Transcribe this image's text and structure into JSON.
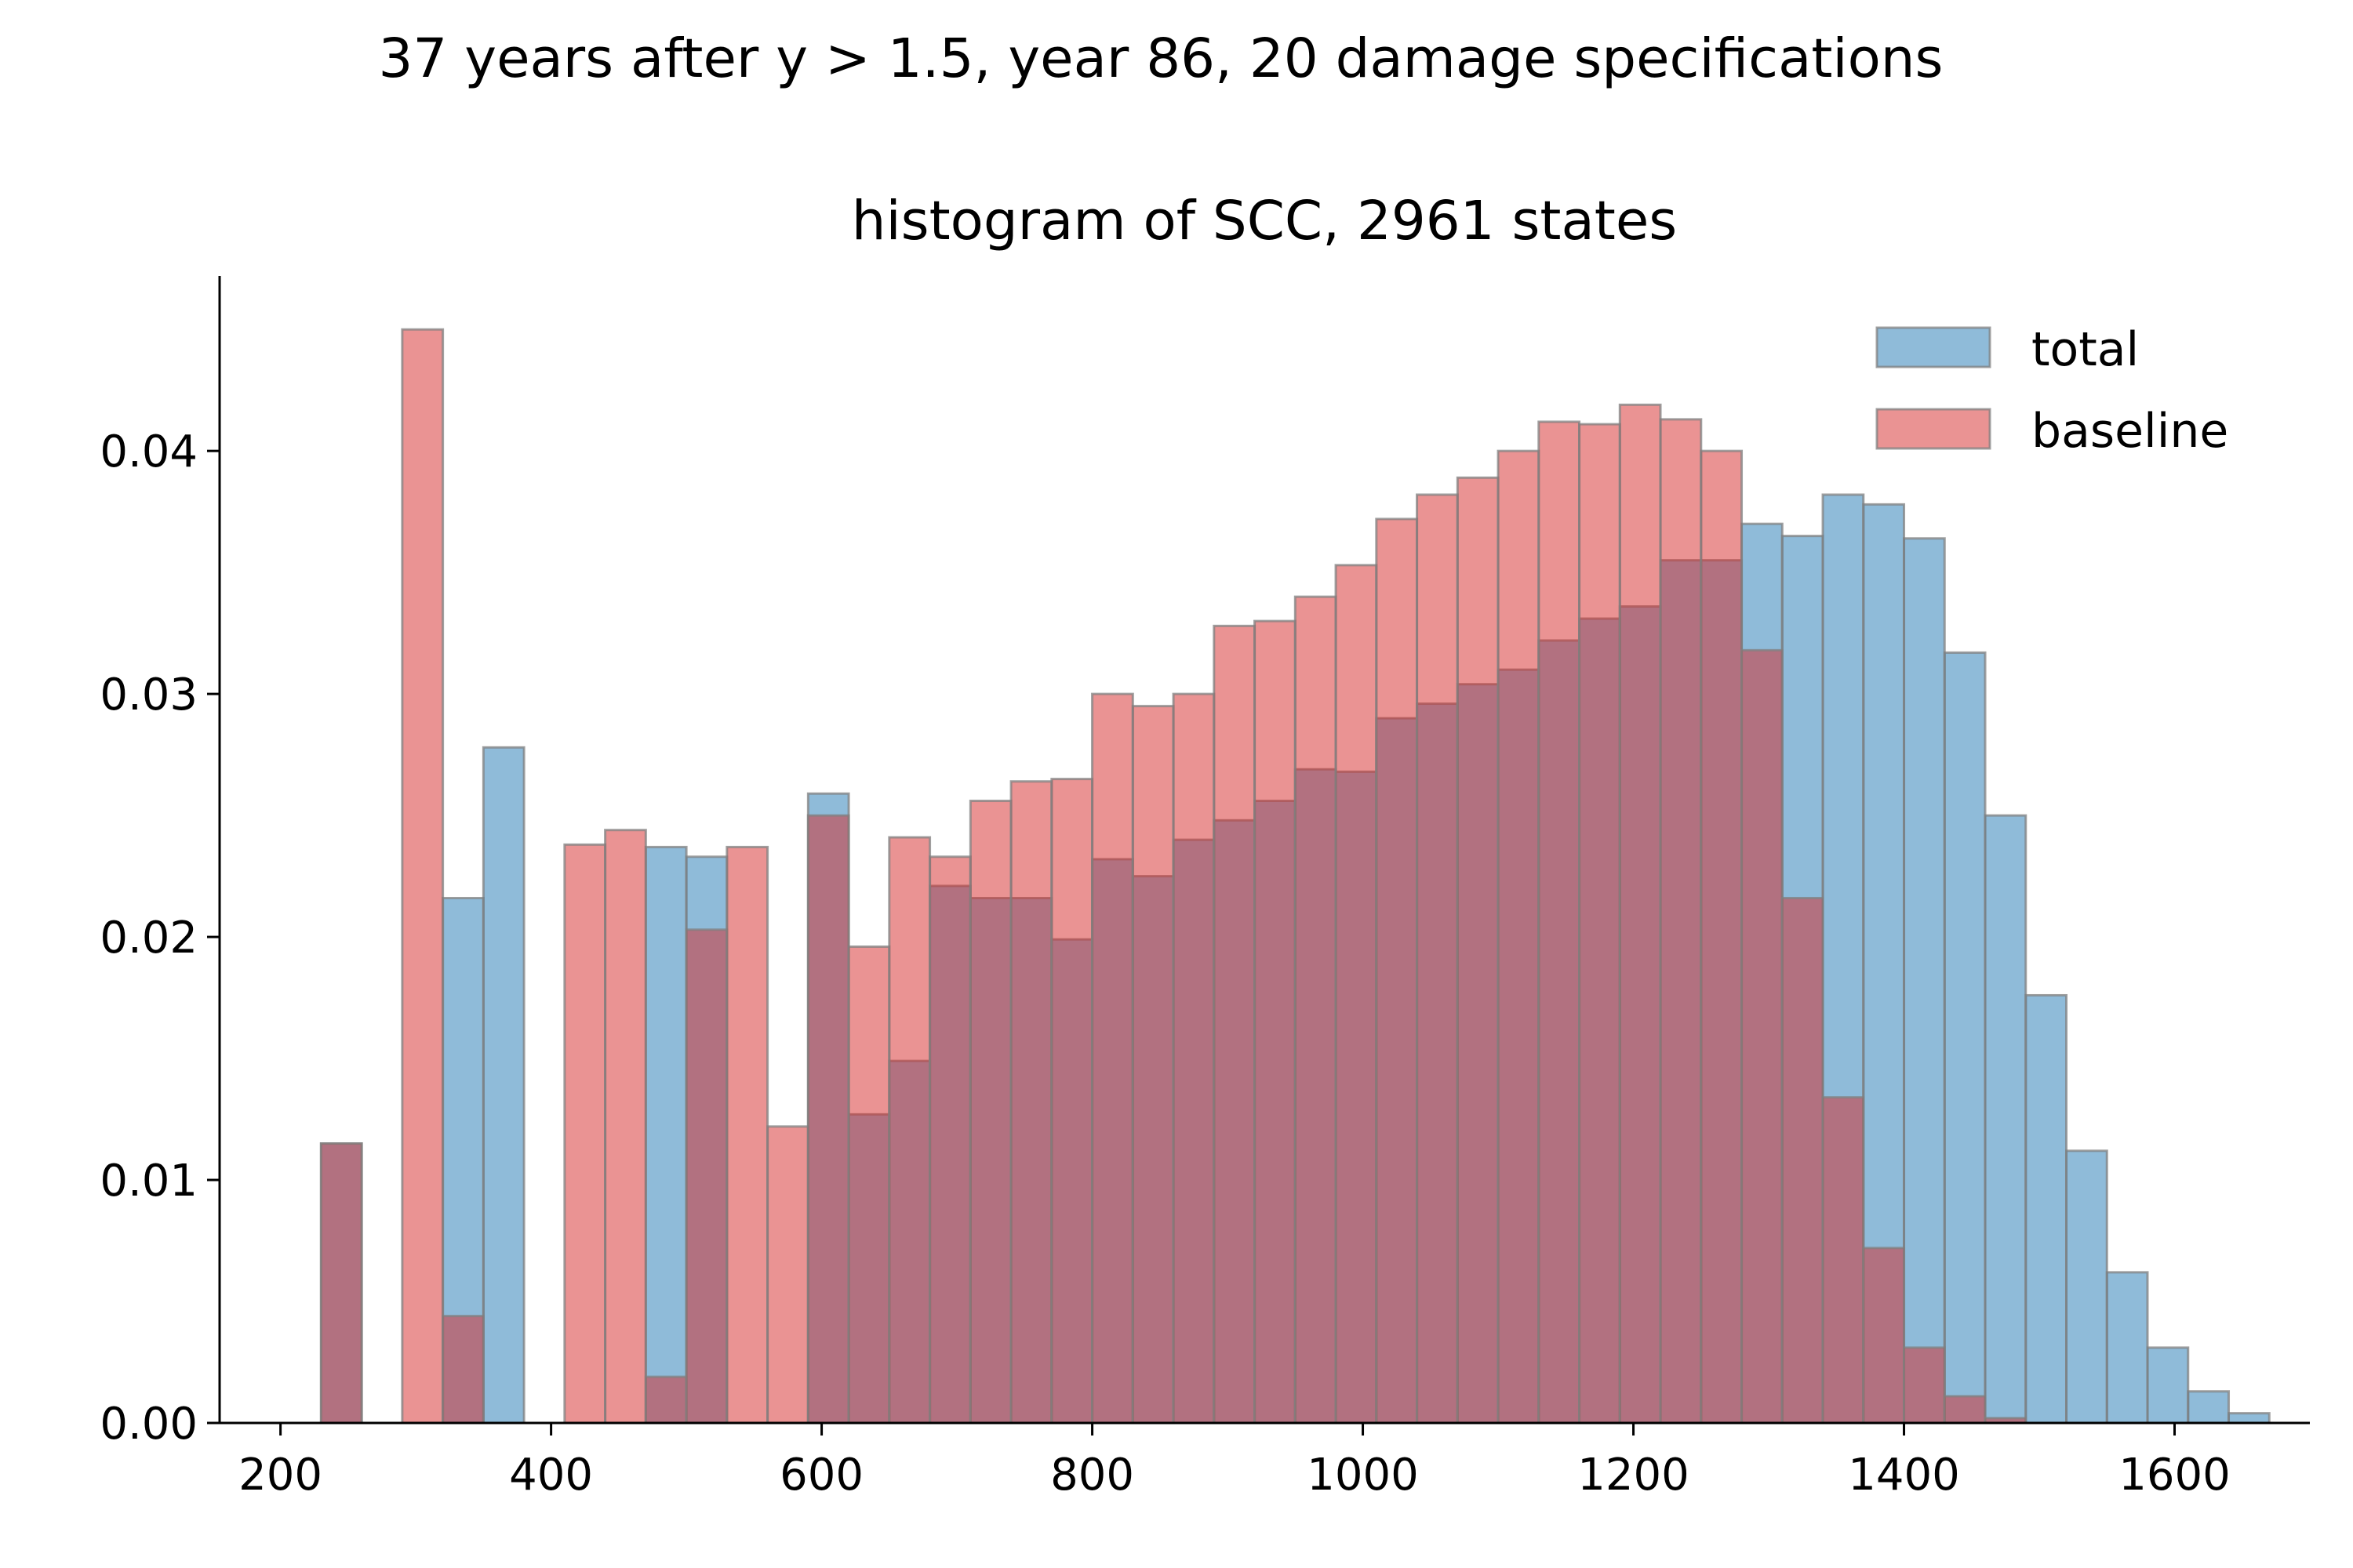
{
  "figure": {
    "suptitle": "37 years after y > 1.5, year 86, 20 damage specifications"
  },
  "colors": {
    "total": "#1f77b4",
    "baseline": "#d62728",
    "edge": "#808080",
    "alpha": 0.5
  },
  "chart_data": {
    "type": "bar",
    "title": "histogram of SCC, 2961 states",
    "xlabel": "",
    "ylabel": "",
    "xlim": [
      155,
      1700
    ],
    "ylim": [
      0,
      0.0472
    ],
    "xticks": [
      200,
      400,
      600,
      800,
      1000,
      1200,
      1400,
      1600
    ],
    "yticks": [
      0.0,
      0.01,
      0.02,
      0.03,
      0.04
    ],
    "xtick_labels": [
      "200",
      "400",
      "600",
      "800",
      "1000",
      "1200",
      "1400",
      "1600"
    ],
    "ytick_labels": [
      "0.00",
      "0.01",
      "0.02",
      "0.03",
      "0.04"
    ],
    "grid": false,
    "legend_position": "top-right",
    "bin_start": 230,
    "bin_width": 30,
    "series": [
      {
        "name": "total",
        "values": [
          0.0115,
          0,
          0,
          0.0216,
          0.0278,
          0,
          0,
          0,
          0.0237,
          0.0233,
          0,
          0,
          0.0259,
          0.0127,
          0.0149,
          0.0221,
          0.0216,
          0.0216,
          0.0199,
          0.0232,
          0.0225,
          0.024,
          0.0248,
          0.0256,
          0.0269,
          0.0268,
          0.029,
          0.0296,
          0.0304,
          0.031,
          0.0322,
          0.0331,
          0.0336,
          0.0355,
          0.0355,
          0.037,
          0.0365,
          0.0382,
          0.0378,
          0.0364,
          0.0317,
          0.025,
          0.0176,
          0.0112,
          0.0062,
          0.0031,
          0.0013,
          0.0004
        ]
      },
      {
        "name": "baseline",
        "values": [
          0.0115,
          0,
          0.045,
          0.0044,
          0,
          0,
          0.0238,
          0.0244,
          0.0019,
          0.0203,
          0.0237,
          0.0122,
          0.025,
          0.0196,
          0.0241,
          0.0233,
          0.0256,
          0.0264,
          0.0265,
          0.03,
          0.0295,
          0.03,
          0.0328,
          0.033,
          0.034,
          0.0353,
          0.0372,
          0.0382,
          0.0389,
          0.04,
          0.0412,
          0.0411,
          0.0419,
          0.0413,
          0.04,
          0.0318,
          0.0216,
          0.0134,
          0.0072,
          0.0031,
          0.0011,
          0.0002,
          0,
          0,
          0,
          0,
          0,
          0
        ]
      }
    ]
  }
}
